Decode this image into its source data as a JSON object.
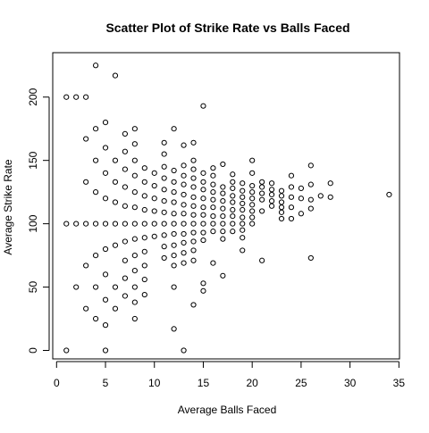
{
  "chart_data": {
    "type": "scatter",
    "title": "Scatter Plot of Strike Rate vs Balls Faced",
    "xlabel": "Average Balls Faced",
    "ylabel": "Average Strike Rate",
    "xlim": [
      0,
      35
    ],
    "ylim": [
      0,
      225
    ],
    "xticks": [
      "0",
      "5",
      "10",
      "15",
      "20",
      "25",
      "30",
      "35"
    ],
    "yticks": [
      "0",
      "50",
      "100",
      "150",
      "200"
    ],
    "grid": false,
    "marker": "open-circle",
    "color": "#000000",
    "points": [
      [
        1,
        0
      ],
      [
        1,
        100
      ],
      [
        1,
        200
      ],
      [
        2,
        50
      ],
      [
        2,
        100
      ],
      [
        2,
        200
      ],
      [
        3,
        33
      ],
      [
        3,
        67
      ],
      [
        3,
        100
      ],
      [
        3,
        133
      ],
      [
        3,
        167
      ],
      [
        3,
        200
      ],
      [
        4,
        25
      ],
      [
        4,
        50
      ],
      [
        4,
        75
      ],
      [
        4,
        100
      ],
      [
        4,
        125
      ],
      [
        4,
        150
      ],
      [
        4,
        175
      ],
      [
        4,
        225
      ],
      [
        5,
        0
      ],
      [
        5,
        20
      ],
      [
        5,
        40
      ],
      [
        5,
        60
      ],
      [
        5,
        80
      ],
      [
        5,
        100
      ],
      [
        5,
        120
      ],
      [
        5,
        140
      ],
      [
        5,
        160
      ],
      [
        5,
        180
      ],
      [
        6,
        33
      ],
      [
        6,
        50
      ],
      [
        6,
        83
      ],
      [
        6,
        100
      ],
      [
        6,
        117
      ],
      [
        6,
        133
      ],
      [
        6,
        150
      ],
      [
        6,
        217
      ],
      [
        7,
        43
      ],
      [
        7,
        57
      ],
      [
        7,
        71
      ],
      [
        7,
        86
      ],
      [
        7,
        100
      ],
      [
        7,
        114
      ],
      [
        7,
        129
      ],
      [
        7,
        143
      ],
      [
        7,
        157
      ],
      [
        7,
        171
      ],
      [
        8,
        25
      ],
      [
        8,
        38
      ],
      [
        8,
        50
      ],
      [
        8,
        63
      ],
      [
        8,
        75
      ],
      [
        8,
        88
      ],
      [
        8,
        100
      ],
      [
        8,
        113
      ],
      [
        8,
        125
      ],
      [
        8,
        138
      ],
      [
        8,
        150
      ],
      [
        8,
        163
      ],
      [
        8,
        175
      ],
      [
        9,
        44
      ],
      [
        9,
        56
      ],
      [
        9,
        67
      ],
      [
        9,
        78
      ],
      [
        9,
        89
      ],
      [
        9,
        100
      ],
      [
        9,
        111
      ],
      [
        9,
        122
      ],
      [
        9,
        133
      ],
      [
        9,
        144
      ],
      [
        10,
        90
      ],
      [
        10,
        100
      ],
      [
        10,
        110
      ],
      [
        10,
        120
      ],
      [
        10,
        130
      ],
      [
        10,
        140
      ],
      [
        11,
        73
      ],
      [
        11,
        82
      ],
      [
        11,
        91
      ],
      [
        11,
        100
      ],
      [
        11,
        109
      ],
      [
        11,
        118
      ],
      [
        11,
        127
      ],
      [
        11,
        136
      ],
      [
        11,
        145
      ],
      [
        11,
        155
      ],
      [
        11,
        164
      ],
      [
        12,
        17
      ],
      [
        12,
        50
      ],
      [
        12,
        67
      ],
      [
        12,
        75
      ],
      [
        12,
        83
      ],
      [
        12,
        92
      ],
      [
        12,
        100
      ],
      [
        12,
        108
      ],
      [
        12,
        117
      ],
      [
        12,
        125
      ],
      [
        12,
        133
      ],
      [
        12,
        142
      ],
      [
        12,
        175
      ],
      [
        13,
        0
      ],
      [
        13,
        69
      ],
      [
        13,
        77
      ],
      [
        13,
        85
      ],
      [
        13,
        92
      ],
      [
        13,
        100
      ],
      [
        13,
        108
      ],
      [
        13,
        115
      ],
      [
        13,
        123
      ],
      [
        13,
        131
      ],
      [
        13,
        138
      ],
      [
        13,
        146
      ],
      [
        13,
        162
      ],
      [
        14,
        36
      ],
      [
        14,
        71
      ],
      [
        14,
        79
      ],
      [
        14,
        86
      ],
      [
        14,
        93
      ],
      [
        14,
        100
      ],
      [
        14,
        107
      ],
      [
        14,
        114
      ],
      [
        14,
        121
      ],
      [
        14,
        129
      ],
      [
        14,
        136
      ],
      [
        14,
        143
      ],
      [
        14,
        150
      ],
      [
        14,
        164
      ],
      [
        15,
        47
      ],
      [
        15,
        53
      ],
      [
        15,
        87
      ],
      [
        15,
        93
      ],
      [
        15,
        100
      ],
      [
        15,
        107
      ],
      [
        15,
        113
      ],
      [
        15,
        120
      ],
      [
        15,
        127
      ],
      [
        15,
        133
      ],
      [
        15,
        140
      ],
      [
        15,
        193
      ],
      [
        16,
        69
      ],
      [
        16,
        94
      ],
      [
        16,
        100
      ],
      [
        16,
        106
      ],
      [
        16,
        113
      ],
      [
        16,
        119
      ],
      [
        16,
        125
      ],
      [
        16,
        131
      ],
      [
        16,
        138
      ],
      [
        16,
        144
      ],
      [
        17,
        59
      ],
      [
        17,
        88
      ],
      [
        17,
        94
      ],
      [
        17,
        100
      ],
      [
        17,
        106
      ],
      [
        17,
        112
      ],
      [
        17,
        118
      ],
      [
        17,
        124
      ],
      [
        17,
        129
      ],
      [
        17,
        147
      ],
      [
        18,
        94
      ],
      [
        18,
        100
      ],
      [
        18,
        106
      ],
      [
        18,
        111
      ],
      [
        18,
        117
      ],
      [
        18,
        122
      ],
      [
        18,
        128
      ],
      [
        18,
        133
      ],
      [
        18,
        139
      ],
      [
        19,
        79
      ],
      [
        19,
        89
      ],
      [
        19,
        95
      ],
      [
        19,
        100
      ],
      [
        19,
        105
      ],
      [
        19,
        111
      ],
      [
        19,
        116
      ],
      [
        19,
        121
      ],
      [
        19,
        126
      ],
      [
        19,
        132
      ],
      [
        20,
        100
      ],
      [
        20,
        105
      ],
      [
        20,
        110
      ],
      [
        20,
        115
      ],
      [
        20,
        120
      ],
      [
        20,
        125
      ],
      [
        20,
        130
      ],
      [
        20,
        140
      ],
      [
        20,
        150
      ],
      [
        21,
        71
      ],
      [
        21,
        110
      ],
      [
        21,
        119
      ],
      [
        21,
        124
      ],
      [
        21,
        129
      ],
      [
        21,
        133
      ],
      [
        22,
        114
      ],
      [
        22,
        118
      ],
      [
        22,
        123
      ],
      [
        22,
        127
      ],
      [
        22,
        132
      ],
      [
        23,
        104
      ],
      [
        23,
        109
      ],
      [
        23,
        113
      ],
      [
        23,
        117
      ],
      [
        23,
        122
      ],
      [
        23,
        126
      ],
      [
        24,
        104
      ],
      [
        24,
        113
      ],
      [
        24,
        121
      ],
      [
        24,
        129
      ],
      [
        24,
        138
      ],
      [
        25,
        108
      ],
      [
        25,
        120
      ],
      [
        25,
        128
      ],
      [
        26,
        73
      ],
      [
        26,
        112
      ],
      [
        26,
        119
      ],
      [
        26,
        131
      ],
      [
        26,
        146
      ],
      [
        27,
        122
      ],
      [
        28,
        121
      ],
      [
        28,
        132
      ],
      [
        34,
        123
      ]
    ]
  }
}
